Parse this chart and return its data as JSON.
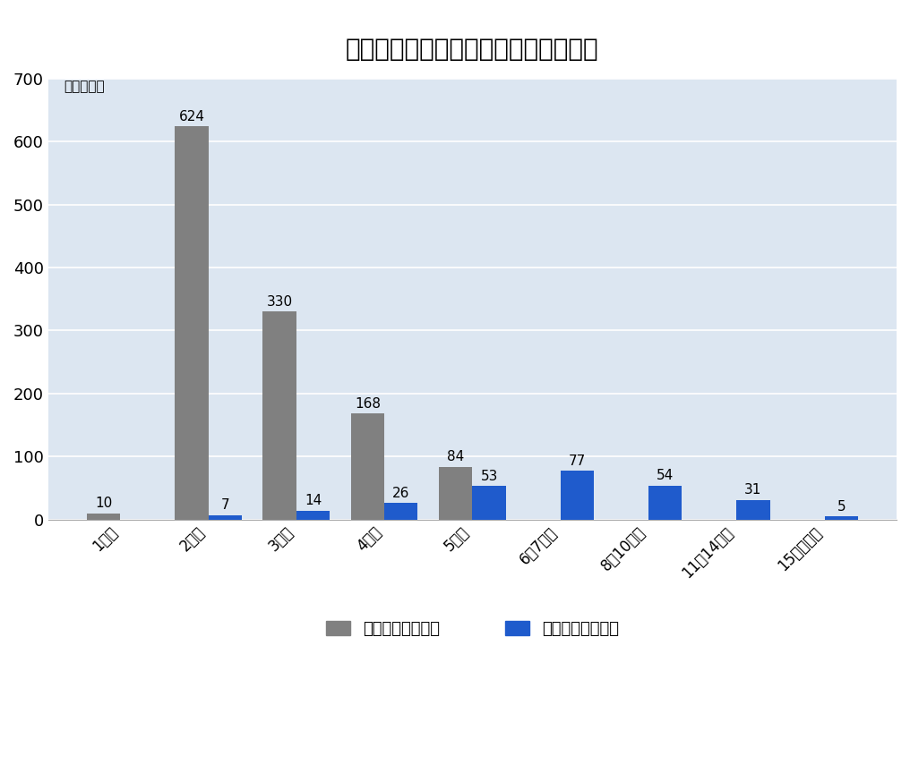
{
  "title": "共同住宅へのエレベーターの設置状況",
  "ylabel": "（千むね）",
  "categories": [
    "1階建",
    "2階建",
    "3階建",
    "4階建",
    "5階建",
    "6〜7階建",
    "8〜10階建",
    "11〜14階建",
    "15階建以上"
  ],
  "no_elevator_values": [
    10,
    624,
    330,
    168,
    84,
    0,
    0,
    0,
    0
  ],
  "with_elevator_values": [
    0,
    7,
    14,
    26,
    53,
    77,
    54,
    31,
    5
  ],
  "no_elevator_labels": [
    10,
    624,
    330,
    168,
    84,
    null,
    null,
    null,
    null
  ],
  "with_elevator_labels": [
    null,
    7,
    14,
    26,
    53,
    77,
    54,
    31,
    5
  ],
  "gray_color": "#808080",
  "blue_color": "#1f5bcc",
  "bg_color": "#dce6f1",
  "fig_bg_color": "#ffffff",
  "ylim": [
    0,
    700
  ],
  "yticks": [
    0,
    100,
    200,
    300,
    400,
    500,
    600,
    700
  ],
  "legend_no_elevator": "エレベーターなし",
  "legend_with_elevator": "エレベーターあり",
  "bar_width": 0.38
}
